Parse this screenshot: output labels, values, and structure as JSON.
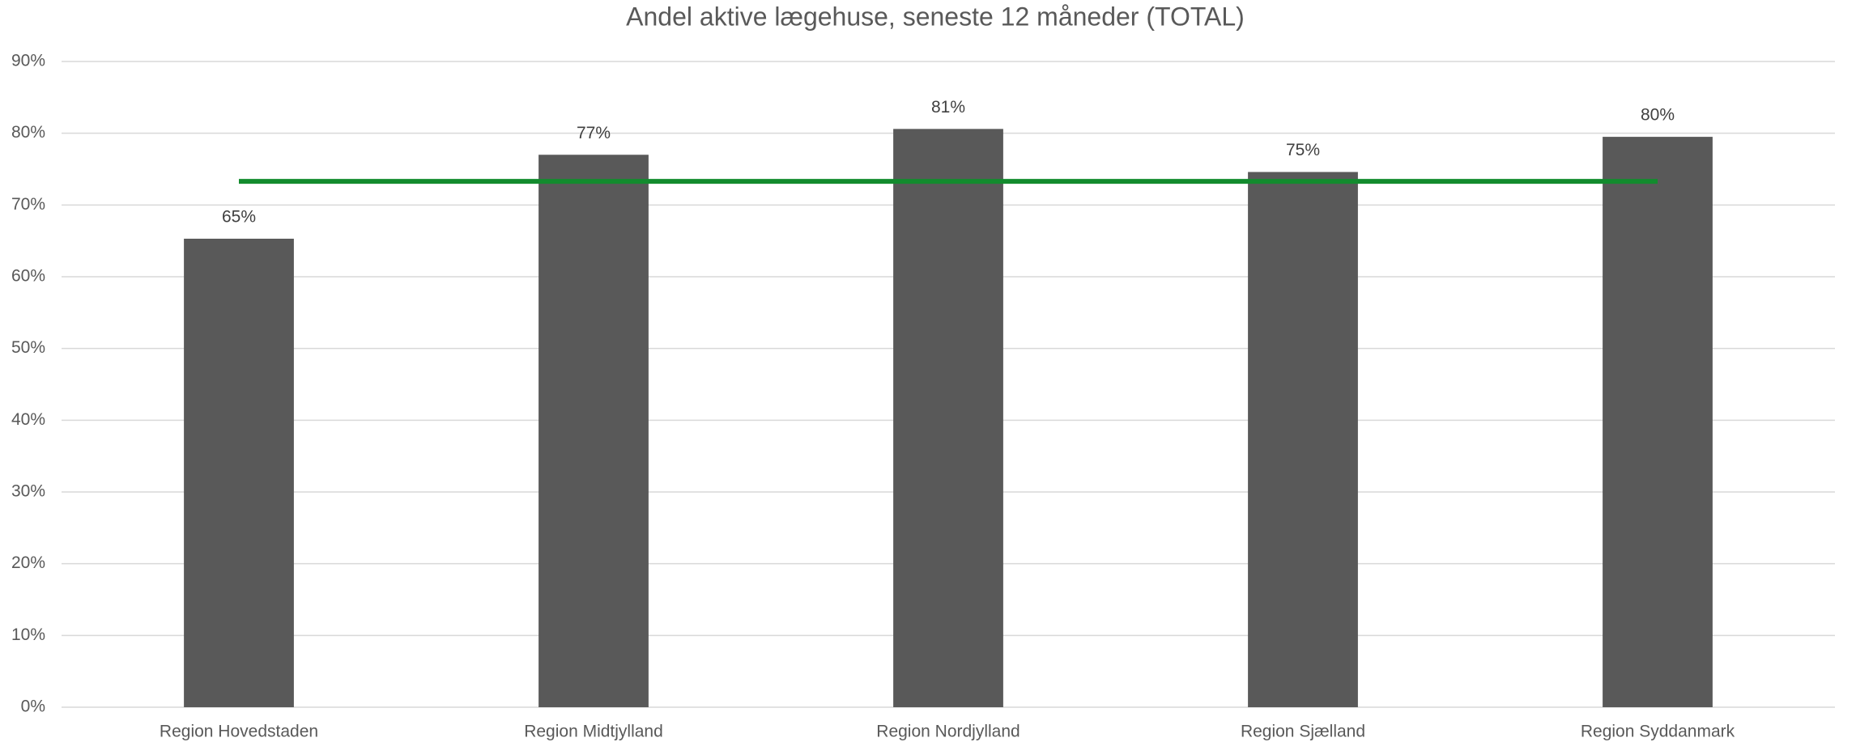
{
  "chart_data": {
    "type": "bar",
    "title": "Andel aktive lægehuse, seneste 12 måneder (TOTAL)",
    "categories": [
      "Region Hovedstaden",
      "Region Midtjylland",
      "Region Nordjylland",
      "Region Sjælland",
      "Region Syddanmark"
    ],
    "values": [
      65.3,
      77,
      80.6,
      74.6,
      79.5
    ],
    "value_labels": [
      "65%",
      "77%",
      "81%",
      "75%",
      "80%"
    ],
    "color": "#595959",
    "line": {
      "values": [
        73.3,
        73.3,
        73.3,
        73.3,
        73.3
      ],
      "color": "#138b2e"
    },
    "ylim": [
      0,
      90
    ],
    "yticks": [
      {
        "value": 0,
        "label": "0%"
      },
      {
        "value": 10,
        "label": "10%"
      },
      {
        "value": 20,
        "label": "20%"
      },
      {
        "value": 30,
        "label": "30%"
      },
      {
        "value": 40,
        "label": "40%"
      },
      {
        "value": 50,
        "label": "50%"
      },
      {
        "value": 60,
        "label": "60%"
      },
      {
        "value": 70,
        "label": "70%"
      },
      {
        "value": 80,
        "label": "80%"
      },
      {
        "value": 90,
        "label": "90%"
      }
    ],
    "grid": true
  }
}
